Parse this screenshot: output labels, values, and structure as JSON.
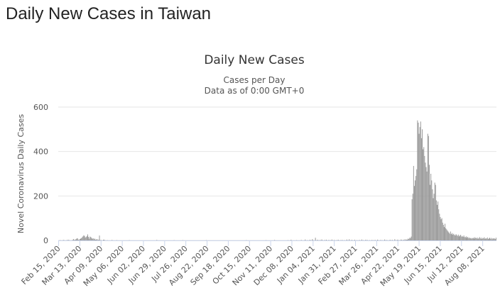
{
  "header": {
    "title": "Daily New Cases in Taiwan"
  },
  "chart_data": {
    "type": "bar",
    "title": "Daily New Cases",
    "subtitle": "Cases per Day",
    "caption": "Data as of 0:00 GMT+0",
    "y_label": "Novel Coronavirus Daily Cases",
    "color": "#999999",
    "grid": true,
    "ylim": [
      0,
      600
    ],
    "yticks": [
      0,
      200,
      400,
      600
    ],
    "categories": [
      "Feb 15, 2020",
      null,
      null,
      null,
      null,
      null,
      null,
      null,
      null,
      null,
      null,
      null,
      null,
      null,
      null,
      null,
      null,
      null,
      null,
      null,
      null,
      null,
      null,
      null,
      null,
      null,
      null,
      "Mar 13, 2020",
      null,
      null,
      null,
      null,
      null,
      null,
      null,
      null,
      null,
      null,
      null,
      null,
      null,
      null,
      null,
      null,
      null,
      null,
      null,
      null,
      null,
      null,
      null,
      null,
      null,
      null,
      "Apr 09, 2020",
      null,
      null,
      null,
      null,
      null,
      null,
      null,
      null,
      null,
      null,
      null,
      null,
      null,
      null,
      null,
      null,
      null,
      null,
      null,
      null,
      null,
      null,
      null,
      null,
      null,
      null,
      "May 06, 2020",
      null,
      null,
      null,
      null,
      null,
      null,
      null,
      null,
      null,
      null,
      null,
      null,
      null,
      null,
      null,
      null,
      null,
      null,
      null,
      null,
      null,
      null,
      null,
      null,
      null,
      null,
      "Jun 02, 2020",
      null,
      null,
      null,
      null,
      null,
      null,
      null,
      null,
      null,
      null,
      null,
      null,
      null,
      null,
      null,
      null,
      null,
      null,
      null,
      null,
      null,
      null,
      null,
      null,
      null,
      null,
      "Jun 29, 2020",
      null,
      null,
      null,
      null,
      null,
      null,
      null,
      null,
      null,
      null,
      null,
      null,
      null,
      null,
      null,
      null,
      null,
      null,
      null,
      null,
      null,
      null,
      null,
      null,
      null,
      null,
      "Jul 26, 2020",
      null,
      null,
      null,
      null,
      null,
      null,
      null,
      null,
      null,
      null,
      null,
      null,
      null,
      null,
      null,
      null,
      null,
      null,
      null,
      null,
      null,
      null,
      null,
      null,
      null,
      null,
      "Aug 22, 2020",
      null,
      null,
      null,
      null,
      null,
      null,
      null,
      null,
      null,
      null,
      null,
      null,
      null,
      null,
      null,
      null,
      null,
      null,
      null,
      null,
      null,
      null,
      null,
      null,
      null,
      null,
      "Sep 18, 2020",
      null,
      null,
      null,
      null,
      null,
      null,
      null,
      null,
      null,
      null,
      null,
      null,
      null,
      null,
      null,
      null,
      null,
      null,
      null,
      null,
      null,
      null,
      null,
      null,
      null,
      null,
      "Oct 15, 2020",
      null,
      null,
      null,
      null,
      null,
      null,
      null,
      null,
      null,
      null,
      null,
      null,
      null,
      null,
      null,
      null,
      null,
      null,
      null,
      null,
      null,
      null,
      null,
      null,
      null,
      null,
      "Nov 11, 2020",
      null,
      null,
      null,
      null,
      null,
      null,
      null,
      null,
      null,
      null,
      null,
      null,
      null,
      null,
      null,
      null,
      null,
      null,
      null,
      null,
      null,
      null,
      null,
      null,
      null,
      null,
      "Dec 08, 2020",
      null,
      null,
      null,
      null,
      null,
      null,
      null,
      null,
      null,
      null,
      null,
      null,
      null,
      null,
      null,
      null,
      null,
      null,
      null,
      null,
      null,
      null,
      null,
      null,
      null,
      null,
      "Jan 04, 2021",
      null,
      null,
      null,
      null,
      null,
      null,
      null,
      null,
      null,
      null,
      null,
      null,
      null,
      null,
      null,
      null,
      null,
      null,
      null,
      null,
      null,
      null,
      null,
      null,
      null,
      null,
      "Jan 31, 2021",
      null,
      null,
      null,
      null,
      null,
      null,
      null,
      null,
      null,
      null,
      null,
      null,
      null,
      null,
      null,
      null,
      null,
      null,
      null,
      null,
      null,
      null,
      null,
      null,
      null,
      null,
      "Feb 27, 2021",
      null,
      null,
      null,
      null,
      null,
      null,
      null,
      null,
      null,
      null,
      null,
      null,
      null,
      null,
      null,
      null,
      null,
      null,
      null,
      null,
      null,
      null,
      null,
      null,
      null,
      null,
      "Mar 26, 2021",
      null,
      null,
      null,
      null,
      null,
      null,
      null,
      null,
      null,
      null,
      null,
      null,
      null,
      null,
      null,
      null,
      null,
      null,
      null,
      null,
      null,
      null,
      null,
      null,
      null,
      null,
      "Apr 22, 2021",
      null,
      null,
      null,
      null,
      null,
      null,
      null,
      null,
      null,
      null,
      null,
      null,
      null,
      null,
      null,
      null,
      null,
      null,
      null,
      null,
      null,
      null,
      null,
      null,
      null,
      null,
      "May 19, 2021",
      null,
      null,
      null,
      null,
      null,
      null,
      null,
      null,
      null,
      null,
      null,
      null,
      null,
      null,
      null,
      null,
      null,
      null,
      null,
      null,
      null,
      null,
      null,
      null,
      null,
      null,
      "Jun 15, 2021",
      null,
      null,
      null,
      null,
      null,
      null,
      null,
      null,
      null,
      null,
      null,
      null,
      null,
      null,
      null,
      null,
      null,
      null,
      null,
      null,
      null,
      null,
      null,
      null,
      null,
      null,
      "Jul 12, 2021",
      null,
      null,
      null,
      null,
      null,
      null,
      null,
      null,
      null,
      null,
      null,
      null,
      null,
      null,
      null,
      null,
      null,
      null,
      null,
      null,
      null,
      null,
      null,
      null,
      null,
      null,
      "Aug 08, 2021",
      null,
      null,
      null,
      null,
      null,
      null,
      null,
      null,
      null,
      null,
      null,
      null,
      null,
      null,
      null,
      null,
      null
    ],
    "values": [
      0,
      0,
      1,
      0,
      0,
      0,
      2,
      1,
      0,
      0,
      1,
      0,
      3,
      1,
      1,
      0,
      0,
      1,
      2,
      6,
      2,
      3,
      5,
      8,
      10,
      4,
      2,
      6,
      8,
      10,
      14,
      18,
      23,
      20,
      13,
      15,
      19,
      27,
      16,
      8,
      17,
      15,
      11,
      7,
      10,
      5,
      8,
      3,
      4,
      6,
      2,
      3,
      22,
      1,
      2,
      0,
      0,
      3,
      3,
      1,
      0,
      0,
      1,
      0,
      0,
      0,
      0,
      0,
      2,
      0,
      0,
      0,
      0,
      0,
      1,
      0,
      0,
      0,
      0,
      0,
      0,
      0,
      0,
      0,
      0,
      0,
      0,
      0,
      0,
      0,
      1,
      0,
      0,
      0,
      0,
      0,
      0,
      0,
      0,
      0,
      0,
      0,
      0,
      0,
      0,
      0,
      0,
      0,
      0,
      0,
      0,
      0,
      0,
      0,
      0,
      0,
      0,
      0,
      0,
      0,
      0,
      0,
      0,
      0,
      0,
      2,
      0,
      0,
      0,
      0,
      0,
      0,
      0,
      0,
      0,
      0,
      0,
      0,
      0,
      0,
      0,
      0,
      0,
      0,
      0,
      0,
      0,
      1,
      0,
      0,
      0,
      0,
      0,
      0,
      0,
      0,
      0,
      0,
      1,
      0,
      0,
      0,
      0,
      0,
      0,
      0,
      0,
      0,
      0,
      0,
      0,
      0,
      0,
      0,
      0,
      0,
      0,
      0,
      0,
      0,
      0,
      0,
      0,
      0,
      0,
      0,
      0,
      0,
      1,
      0,
      0,
      0,
      0,
      0,
      0,
      0,
      0,
      0,
      0,
      0,
      0,
      0,
      0,
      0,
      0,
      0,
      0,
      0,
      0,
      0,
      0,
      0,
      0,
      0,
      0,
      0,
      0,
      0,
      0,
      0,
      0,
      0,
      0,
      0,
      0,
      0,
      0,
      0,
      0,
      0,
      0,
      0,
      0,
      0,
      0,
      0,
      0,
      0,
      0,
      1,
      0,
      0,
      0,
      0,
      0,
      0,
      0,
      0,
      0,
      0,
      0,
      0,
      0,
      0,
      0,
      0,
      0,
      0,
      0,
      0,
      0,
      0,
      0,
      0,
      1,
      0,
      0,
      0,
      0,
      0,
      0,
      0,
      0,
      0,
      0,
      2,
      0,
      0,
      0,
      0,
      0,
      0,
      0,
      0,
      0,
      0,
      0,
      0,
      0,
      0,
      0,
      0,
      1,
      0,
      0,
      0,
      3,
      0,
      0,
      0,
      0,
      0,
      0,
      1,
      0,
      0,
      0,
      0,
      0,
      2,
      0,
      0,
      0,
      0,
      4,
      0,
      0,
      1,
      0,
      0,
      3,
      0,
      0,
      5,
      2,
      0,
      0,
      12,
      1,
      0,
      3,
      0,
      0,
      2,
      0,
      4,
      1,
      0,
      0,
      2,
      0,
      3,
      0,
      0,
      2,
      0,
      1,
      0,
      4,
      0,
      0,
      2,
      0,
      0,
      1,
      0,
      3,
      0,
      0,
      1,
      0,
      2,
      0,
      0,
      1,
      0,
      0,
      4,
      0,
      0,
      5,
      0,
      0,
      2,
      1,
      0,
      0,
      3,
      0,
      0,
      1,
      0,
      0,
      2,
      0,
      0,
      4,
      0,
      1,
      0,
      0,
      3,
      0,
      2,
      0,
      0,
      1,
      0,
      0,
      2,
      0,
      1,
      0,
      2,
      0,
      0,
      3,
      1,
      0,
      0,
      2,
      0,
      1,
      0,
      0,
      4,
      0,
      2,
      0,
      1,
      0,
      0,
      3,
      0,
      1,
      2,
      0,
      0,
      5,
      1,
      0,
      2,
      3,
      0,
      1,
      0,
      4,
      2,
      0,
      3,
      1,
      5,
      2,
      4,
      3,
      8,
      6,
      12,
      10,
      17,
      185,
      210,
      335,
      245,
      270,
      290,
      320,
      540,
      530,
      480,
      510,
      535,
      460,
      500,
      410,
      420,
      380,
      350,
      330,
      310,
      480,
      470,
      340,
      250,
      300,
      270,
      230,
      190,
      210,
      260,
      250,
      180,
      160,
      175,
      140,
      120,
      105,
      95,
      100,
      80,
      70,
      60,
      75,
      55,
      50,
      45,
      40,
      35,
      30,
      40,
      28,
      33,
      26,
      30,
      25,
      22,
      28,
      24,
      20,
      26,
      18,
      22,
      25,
      17,
      20,
      16,
      22,
      15,
      14,
      18,
      12,
      16,
      10,
      13,
      9,
      11,
      8,
      10,
      12,
      8,
      14,
      11,
      9,
      13,
      7,
      10,
      15,
      8,
      12,
      6,
      11,
      9,
      14,
      7,
      10,
      8,
      13,
      6,
      9,
      12,
      7,
      11,
      5,
      10,
      8,
      9,
      6,
      12
    ]
  }
}
